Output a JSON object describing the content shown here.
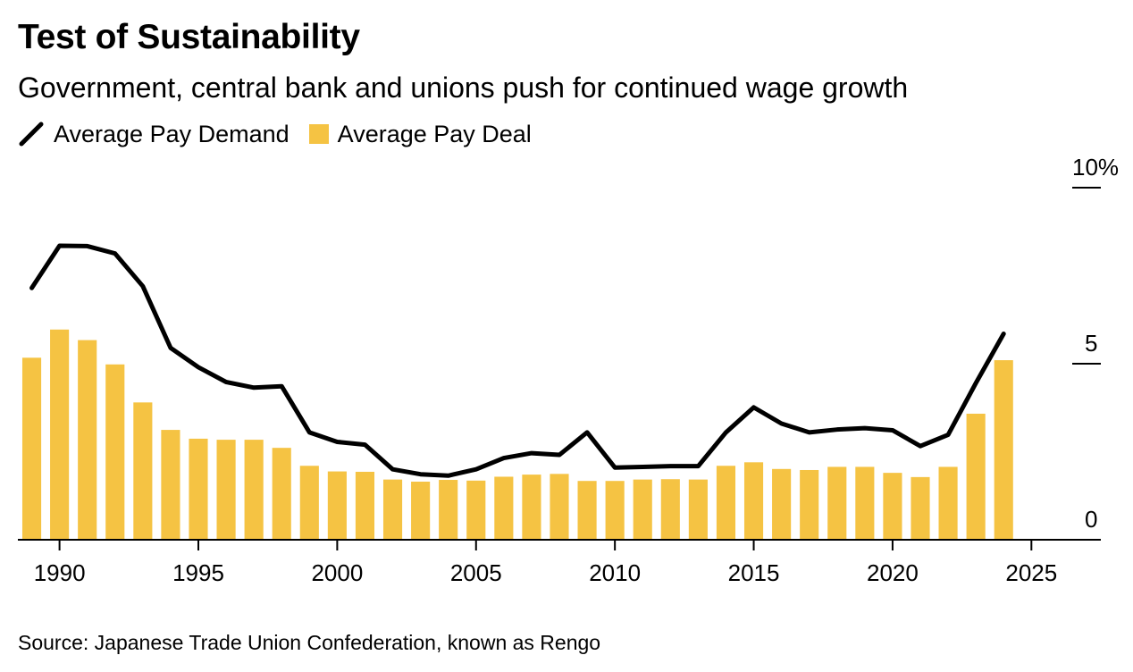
{
  "header": {
    "title": "Test of Sustainability",
    "subtitle": "Government, central bank and unions push for continued wage growth"
  },
  "legend": {
    "items": [
      {
        "label": "Average Pay Demand",
        "icon": "line-icon",
        "color": "#000000"
      },
      {
        "label": "Average Pay Deal",
        "icon": "square-icon",
        "color": "#F5C343"
      }
    ]
  },
  "footer": {
    "source": "Source: Japanese Trade Union Confederation, known as Rengo"
  },
  "chart_data": {
    "type": "bar",
    "xlim": [
      1988.5,
      2027.5
    ],
    "ylim": [
      0,
      10
    ],
    "x_ticks": [
      1990,
      1995,
      2000,
      2005,
      2010,
      2015,
      2020,
      2025
    ],
    "x_tick_labels": [
      "1990",
      "1995",
      "2000",
      "2005",
      "2010",
      "2015",
      "2020",
      "2025"
    ],
    "y_ticks": [
      0,
      5,
      10
    ],
    "y_tick_labels": [
      "0",
      "5",
      "10%"
    ],
    "y_axis_position": "right",
    "grid": false,
    "legend_position": "top-left",
    "x": [
      1989,
      1990,
      1991,
      1992,
      1993,
      1994,
      1995,
      1996,
      1997,
      1998,
      1999,
      2000,
      2001,
      2002,
      2003,
      2004,
      2005,
      2006,
      2007,
      2008,
      2009,
      2010,
      2011,
      2012,
      2013,
      2014,
      2015,
      2016,
      2017,
      2018,
      2019,
      2020,
      2021,
      2022,
      2023,
      2024
    ],
    "series": [
      {
        "name": "Average Pay Deal",
        "type": "bar",
        "color": "#F5C343",
        "values": [
          5.17,
          5.97,
          5.67,
          4.98,
          3.9,
          3.12,
          2.87,
          2.84,
          2.84,
          2.61,
          2.1,
          1.94,
          1.93,
          1.71,
          1.65,
          1.7,
          1.68,
          1.79,
          1.85,
          1.87,
          1.67,
          1.67,
          1.71,
          1.72,
          1.71,
          2.1,
          2.2,
          2.01,
          1.98,
          2.07,
          2.07,
          1.9,
          1.78,
          2.07,
          3.58,
          5.1
        ]
      },
      {
        "name": "Average Pay Demand",
        "type": "line",
        "color": "#000000",
        "values": [
          7.15,
          8.35,
          8.34,
          8.13,
          7.2,
          5.45,
          4.9,
          4.48,
          4.32,
          4.36,
          3.05,
          2.78,
          2.7,
          2.0,
          1.86,
          1.82,
          2.0,
          2.32,
          2.46,
          2.41,
          3.05,
          2.05,
          2.07,
          2.09,
          2.09,
          3.05,
          3.76,
          3.3,
          3.05,
          3.13,
          3.17,
          3.11,
          2.66,
          2.98,
          4.45,
          5.85
        ]
      }
    ]
  }
}
